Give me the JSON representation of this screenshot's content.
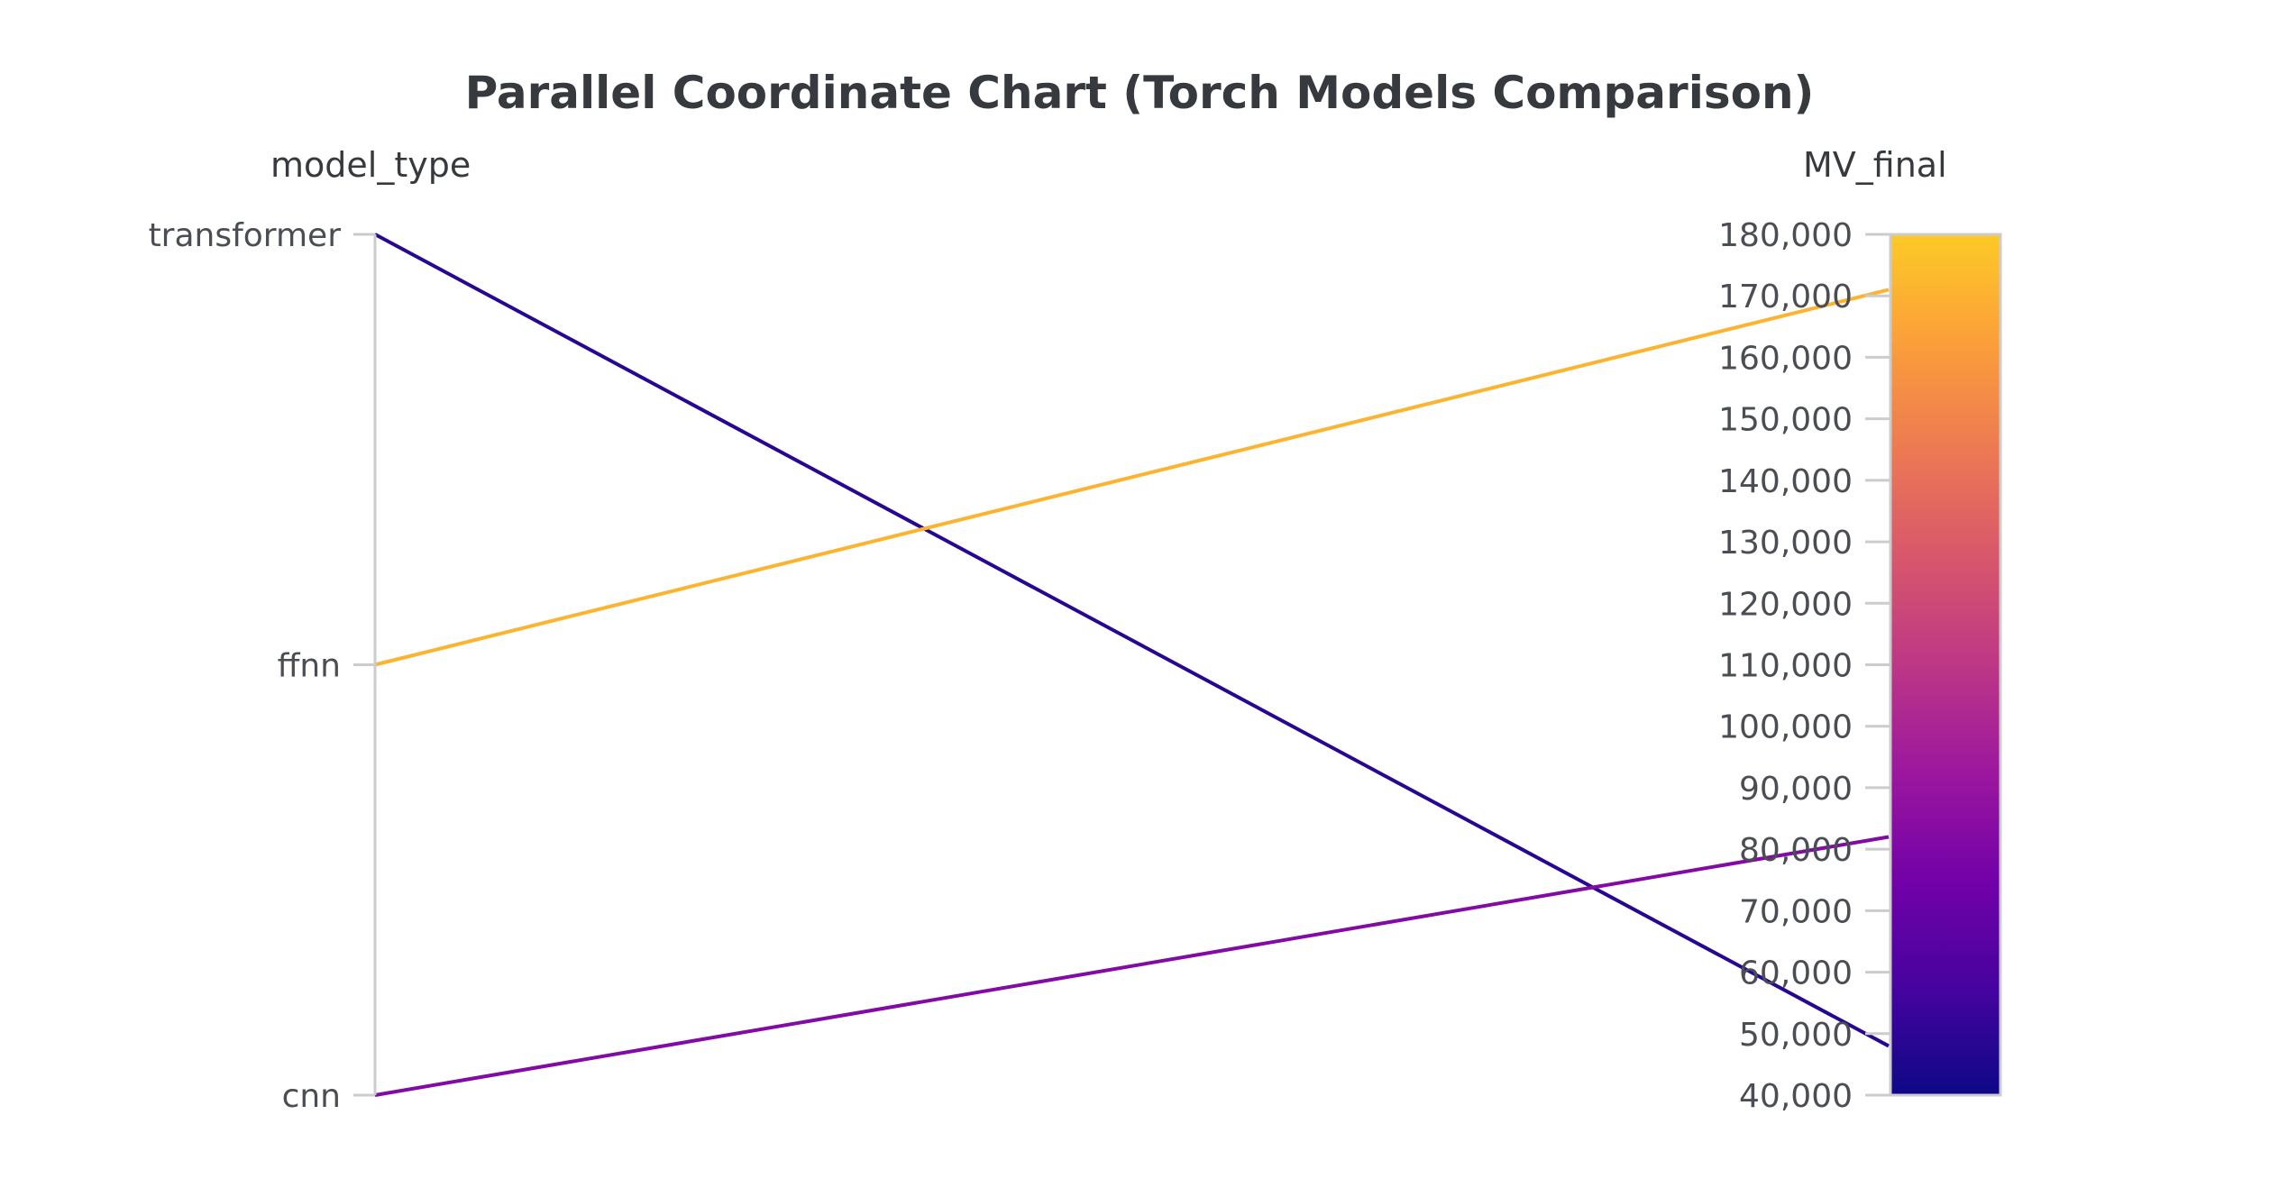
{
  "chart_data": {
    "type": "parallel_coordinates",
    "title": "Parallel Coordinate Chart (Torch Models Comparison)",
    "dimensions": [
      {
        "label": "model_type",
        "kind": "categorical",
        "categories": [
          "cnn",
          "ffnn",
          "transformer"
        ]
      },
      {
        "label": "MV_final",
        "kind": "numeric",
        "range": [
          40000,
          180000
        ],
        "ticks": [
          40000,
          50000,
          60000,
          70000,
          80000,
          90000,
          100000,
          110000,
          120000,
          130000,
          140000,
          150000,
          160000,
          170000,
          180000
        ],
        "tick_labels": [
          "40,000",
          "50,000",
          "60,000",
          "70,000",
          "80,000",
          "90,000",
          "100,000",
          "110,000",
          "120,000",
          "130,000",
          "140,000",
          "150,000",
          "160,000",
          "170,000",
          "180,000"
        ]
      }
    ],
    "records": [
      {
        "model_type": "transformer",
        "MV_final": 48000
      },
      {
        "model_type": "ffnn",
        "MV_final": 171000
      },
      {
        "model_type": "cnn",
        "MV_final": 82000
      }
    ],
    "colorscale": {
      "dimension": "MV_final",
      "range": [
        40000,
        180000
      ],
      "stops": [
        "#0d0887",
        "#46039f",
        "#7201a8",
        "#9c179e",
        "#bd3786",
        "#d8576b",
        "#ed7953",
        "#fb9f3a",
        "#fdca26"
      ]
    }
  }
}
